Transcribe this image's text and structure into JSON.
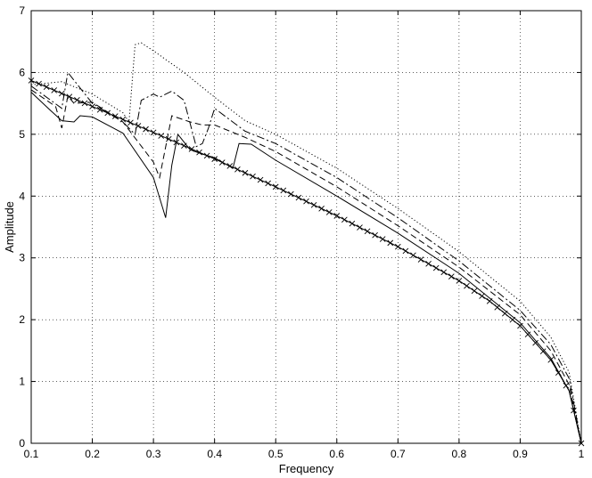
{
  "chart_data": {
    "type": "line",
    "title": "",
    "xlabel": "Frequency",
    "ylabel": "Amplitude",
    "xlim": [
      0.1,
      1.0
    ],
    "ylim": [
      0,
      7
    ],
    "grid": true,
    "xticks": [
      "0.1",
      "0.2",
      "0.3",
      "0.4",
      "0.5",
      "0.6",
      "0.7",
      "0.8",
      "0.9",
      "1"
    ],
    "yticks": [
      "0",
      "1",
      "2",
      "3",
      "4",
      "5",
      "6",
      "7"
    ],
    "series": [
      {
        "style": "x-marker",
        "x": [
          0.1,
          0.2,
          0.3,
          0.4,
          0.5,
          0.6,
          0.7,
          0.8,
          0.85,
          0.9,
          0.95,
          0.98,
          1.0
        ],
        "y": [
          5.87,
          5.45,
          5.03,
          4.6,
          4.15,
          3.68,
          3.18,
          2.63,
          2.3,
          1.9,
          1.35,
          0.85,
          0.0
        ]
      },
      {
        "style": "solid",
        "x": [
          0.1,
          0.13,
          0.15,
          0.17,
          0.18,
          0.2,
          0.25,
          0.3,
          0.32,
          0.33,
          0.34,
          0.36,
          0.38,
          0.4,
          0.43,
          0.44,
          0.46,
          0.5,
          0.6,
          0.7,
          0.8,
          0.9,
          0.95,
          0.98,
          1.0
        ],
        "y": [
          5.68,
          5.4,
          5.22,
          5.2,
          5.3,
          5.28,
          5.02,
          4.3,
          3.65,
          4.5,
          5.0,
          4.75,
          4.68,
          4.62,
          4.45,
          4.85,
          4.84,
          4.58,
          4.0,
          3.4,
          2.75,
          1.95,
          1.38,
          0.85,
          0.0
        ]
      },
      {
        "style": "dashed",
        "x": [
          0.1,
          0.14,
          0.15,
          0.16,
          0.17,
          0.2,
          0.25,
          0.3,
          0.31,
          0.33,
          0.36,
          0.38,
          0.4,
          0.45,
          0.5,
          0.6,
          0.7,
          0.8,
          0.9,
          0.95,
          0.98,
          1.0
        ],
        "y": [
          5.72,
          5.45,
          5.1,
          5.62,
          5.5,
          5.52,
          5.2,
          4.55,
          4.3,
          5.3,
          5.2,
          5.15,
          5.15,
          4.95,
          4.72,
          4.15,
          3.52,
          2.85,
          2.08,
          1.5,
          0.95,
          0.0
        ]
      },
      {
        "style": "dashdot",
        "x": [
          0.1,
          0.15,
          0.16,
          0.18,
          0.2,
          0.25,
          0.27,
          0.28,
          0.3,
          0.31,
          0.33,
          0.35,
          0.37,
          0.38,
          0.39,
          0.4,
          0.45,
          0.5,
          0.6,
          0.7,
          0.8,
          0.9,
          0.95,
          0.98,
          1.0
        ],
        "y": [
          5.78,
          5.42,
          6.0,
          5.75,
          5.5,
          5.2,
          5.0,
          5.55,
          5.65,
          5.6,
          5.7,
          5.55,
          4.8,
          4.85,
          5.1,
          5.42,
          5.05,
          4.85,
          4.3,
          3.65,
          2.95,
          2.15,
          1.6,
          1.05,
          0.0
        ]
      },
      {
        "style": "dotted",
        "x": [
          0.1,
          0.15,
          0.2,
          0.25,
          0.26,
          0.27,
          0.28,
          0.3,
          0.35,
          0.4,
          0.45,
          0.5,
          0.6,
          0.7,
          0.8,
          0.9,
          0.95,
          0.98,
          1.0
        ],
        "y": [
          5.8,
          5.85,
          5.65,
          5.35,
          5.2,
          6.45,
          6.48,
          6.35,
          6.0,
          5.6,
          5.22,
          5.0,
          4.45,
          3.8,
          3.1,
          2.3,
          1.72,
          1.15,
          0.0
        ]
      }
    ]
  }
}
